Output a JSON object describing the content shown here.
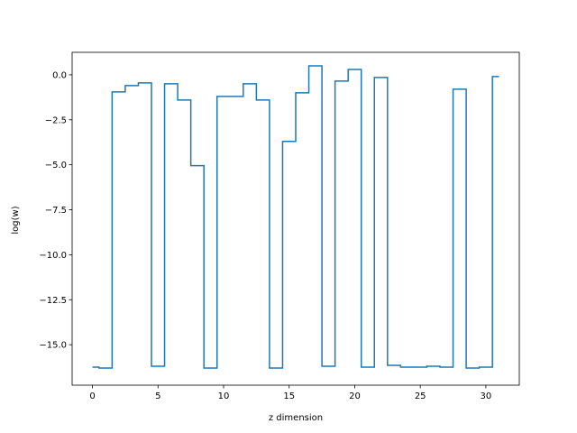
{
  "chart_data": {
    "type": "line",
    "drawstyle": "steps-mid",
    "title": "",
    "xlabel": "z dimension",
    "ylabel": "log(w)",
    "xlim": [
      -1.55,
      32.55
    ],
    "ylim": [
      -17.25,
      1.25
    ],
    "xticks": [
      0,
      5,
      10,
      15,
      20,
      25,
      30
    ],
    "xtick_labels": [
      "0",
      "5",
      "10",
      "15",
      "20",
      "25",
      "30"
    ],
    "yticks": [
      0.0,
      -2.5,
      -5.0,
      -7.5,
      -10.0,
      -12.5,
      -15.0
    ],
    "ytick_labels": [
      "0.0",
      "−2.5",
      "−5.0",
      "−7.5",
      "−10.0",
      "−12.5",
      "−15.0"
    ],
    "grid": false,
    "legend": "none",
    "series": [
      {
        "color": "#1f77b4",
        "x": [
          0,
          1,
          2,
          3,
          4,
          5,
          6,
          7,
          8,
          9,
          10,
          11,
          12,
          13,
          14,
          15,
          16,
          17,
          18,
          19,
          20,
          21,
          22,
          23,
          24,
          25,
          26,
          27,
          28,
          29,
          30,
          31
        ],
        "y": [
          -16.25,
          -16.3,
          -0.95,
          -0.6,
          -0.45,
          -16.2,
          -0.5,
          -1.4,
          -5.05,
          -16.3,
          -1.2,
          -1.2,
          -0.5,
          -1.4,
          -16.3,
          -3.7,
          -1.0,
          0.5,
          -16.2,
          -0.35,
          0.3,
          -16.25,
          -0.15,
          -16.15,
          -16.25,
          -16.25,
          -16.2,
          -16.25,
          -0.8,
          -16.3,
          -16.25,
          -0.1
        ]
      }
    ]
  }
}
